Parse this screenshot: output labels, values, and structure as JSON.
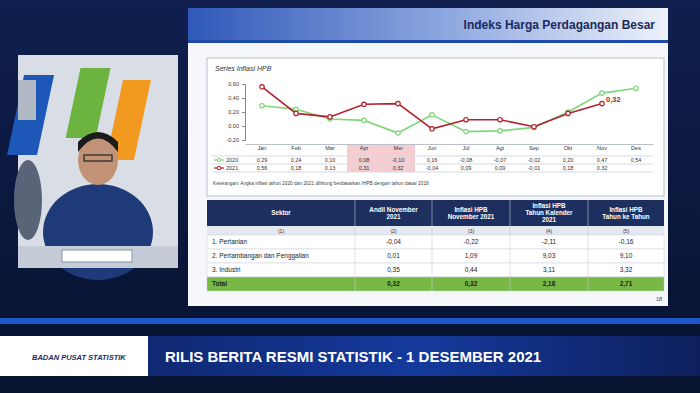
{
  "slide": {
    "title": "Indeks Harga Perdagangan Besar",
    "page": "18"
  },
  "chart_data": {
    "type": "line",
    "title": "Series Inflasi HPB",
    "categories": [
      "Jan",
      "Feb",
      "Mar",
      "Apr",
      "Mei",
      "Jun",
      "Jul",
      "Agt",
      "Sep",
      "Okt",
      "Nov",
      "Des"
    ],
    "series": [
      {
        "name": "2020",
        "color": "#7fd67a",
        "marker": "circle",
        "values": [
          0.29,
          0.24,
          0.1,
          0.08,
          -0.1,
          0.16,
          -0.08,
          -0.07,
          -0.02,
          0.2,
          0.47,
          0.54
        ],
        "value_labels": [
          "0,29",
          "0,24",
          "0,10",
          "0,08",
          "-0,10",
          "0,16",
          "-0,08",
          "-0,07",
          "-0,02",
          "0,20",
          "0,47",
          "0,54"
        ]
      },
      {
        "name": "2021",
        "color": "#b3202e",
        "marker": "circle",
        "values": [
          0.56,
          0.18,
          0.13,
          0.31,
          0.32,
          -0.04,
          0.09,
          0.09,
          -0.01,
          0.18,
          0.32,
          null
        ],
        "value_labels": [
          "0,56",
          "0,18",
          "0,13",
          "0,31",
          "0,32",
          "-0,04",
          "0,09",
          "0,09",
          "-0,01",
          "0,18",
          "0,32",
          null
        ]
      }
    ],
    "ylim": [
      -0.2,
      0.6
    ],
    "yticks": [
      {
        "value": -0.2,
        "label": "-0,20"
      },
      {
        "value": 0,
        "label": "0,00"
      },
      {
        "value": 0.2,
        "label": "0,20"
      },
      {
        "value": 0.4,
        "label": "0,40"
      },
      {
        "value": 0.6,
        "label": "0,60"
      }
    ],
    "grid": false,
    "annotations": [
      {
        "text": "0,32",
        "at": "Nov",
        "series": "2021"
      }
    ]
  },
  "footnote": "Keterangan: Angka inflasi tahun 2020 dan 2021 dihitung berdasarkan IHPB dengan tahun dasar 2018",
  "table": {
    "header": [
      "Sektor",
      "Andil November 2021",
      "Inflasi HPB November 2021",
      "Inflasi HPB Tahun Kalender 2021",
      "Inflasi HPB Tahun ke Tahun"
    ],
    "numbers": [
      "(1)",
      "(2)",
      "(3)",
      "(4)",
      "(5)"
    ],
    "rows": [
      [
        "1. Pertanian",
        "-0,04",
        "-0,22",
        "-2,11",
        "-0,16"
      ],
      [
        "2. Pertambangan dan Penggalian",
        "0,01",
        "1,09",
        "9,03",
        "9,10"
      ],
      [
        "3. Industri",
        "0,35",
        "0,44",
        "3,11",
        "3,32"
      ],
      [
        "Total",
        "0,32",
        "0,32",
        "2,16",
        "2,71"
      ]
    ]
  },
  "banner": {
    "title": "RILIS BERITA RESMI STATISTIK - 1 DESEMBER 2021",
    "org": "BADAN PUSAT STATISTIK"
  }
}
